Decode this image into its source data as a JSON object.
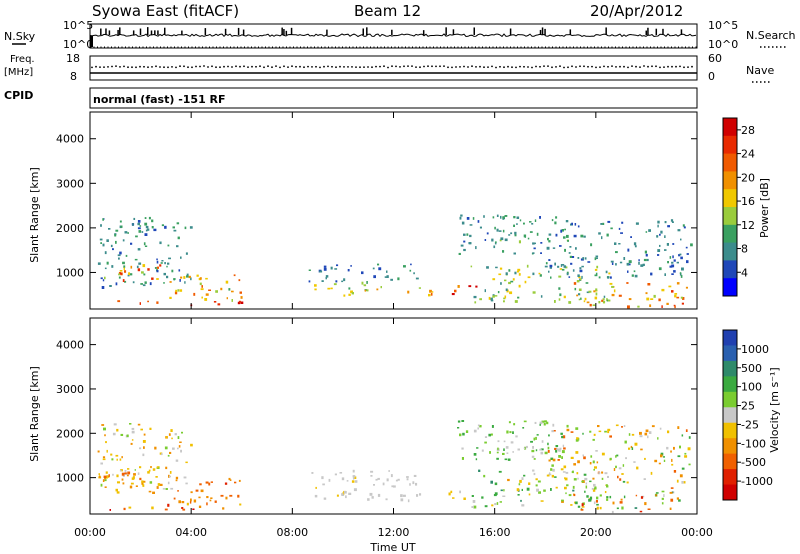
{
  "header": {
    "station": "Syowa East (fitACF)",
    "beam": "Beam 12",
    "date": "20/Apr/2012"
  },
  "top_panels": {
    "nsky_label": "N.Sky",
    "nsky_ticks": [
      "10^5",
      "10^0"
    ],
    "nsearch_label": "N.Search",
    "nsearch_ticks": [
      "10^5",
      "10^0"
    ],
    "freq_label": "Freq.",
    "freq_unit": "[MHz]",
    "freq_ticks": [
      "18",
      "8"
    ],
    "nave_label": "Nave",
    "nave_ticks": [
      "60",
      "0"
    ],
    "cpid_label": "CPID",
    "cpid_text": "normal (fast) -151 RF"
  },
  "colors": {
    "power_scale": [
      "#0000ff",
      "#1f47b8",
      "#3c8c8c",
      "#3aa060",
      "#9acc3c",
      "#f0c800",
      "#f09000",
      "#f05a00",
      "#e82a00",
      "#d00000"
    ],
    "velocity_scale": [
      "#2040b0",
      "#2a60b0",
      "#2e8a6a",
      "#3aaa40",
      "#7acc30",
      "#c8c8c8",
      "#f0c000",
      "#f09000",
      "#f06000",
      "#e02000",
      "#d00000"
    ]
  },
  "icons": [
    "nsearch-dotted-legend-icon",
    "nave-dotted-legend-icon"
  ],
  "chart_data": [
    {
      "type": "heatmap",
      "panel": "power",
      "ylabel": "Slant Range [km]",
      "y_ticks": [
        "1000",
        "2000",
        "3000",
        "4000"
      ],
      "ylim": [
        180,
        4600
      ],
      "colorbar_label": "Power [dB]",
      "colorbar_ticks": [
        "4",
        "8",
        "12",
        "16",
        "20",
        "24",
        "28"
      ],
      "colorbar_range": [
        0,
        30
      ],
      "x_range_hours": [
        0,
        24
      ],
      "scatter_regions": [
        {
          "t": [
            0.3,
            4.0
          ],
          "r": [
            650,
            2250
          ],
          "v": [
            4,
            12
          ]
        },
        {
          "t": [
            0.2,
            2.8
          ],
          "r": [
            800,
            1200
          ],
          "v": [
            12,
            26
          ]
        },
        {
          "t": [
            3.0,
            6.0
          ],
          "r": [
            400,
            1000
          ],
          "v": [
            10,
            24
          ]
        },
        {
          "t": [
            0.4,
            6.0
          ],
          "r": [
            280,
            380
          ],
          "v": [
            22,
            30
          ]
        },
        {
          "t": [
            8.5,
            13.0
          ],
          "r": [
            800,
            1200
          ],
          "v": [
            4,
            10
          ]
        },
        {
          "t": [
            8.8,
            11.0
          ],
          "r": [
            550,
            800
          ],
          "v": [
            8,
            16
          ]
        },
        {
          "t": [
            10.0,
            11.7
          ],
          "r": [
            500,
            720
          ],
          "v": [
            12,
            24
          ]
        },
        {
          "t": [
            12.0,
            13.6
          ],
          "r": [
            500,
            720
          ],
          "v": [
            14,
            28
          ]
        },
        {
          "t": [
            14.0,
            15.3
          ],
          "r": [
            500,
            720
          ],
          "v": [
            18,
            30
          ]
        },
        {
          "t": [
            14.5,
            18.5
          ],
          "r": [
            1400,
            2300
          ],
          "v": [
            4,
            12
          ]
        },
        {
          "t": [
            15.0,
            20.5
          ],
          "r": [
            350,
            1200
          ],
          "v": [
            6,
            18
          ]
        },
        {
          "t": [
            16.0,
            19.0
          ],
          "r": [
            1650,
            1850
          ],
          "v": [
            8,
            14
          ]
        },
        {
          "t": [
            18.0,
            23.8
          ],
          "r": [
            900,
            2200
          ],
          "v": [
            4,
            10
          ]
        },
        {
          "t": [
            19.0,
            23.6
          ],
          "r": [
            250,
            800
          ],
          "v": [
            12,
            26
          ]
        }
      ]
    },
    {
      "type": "heatmap",
      "panel": "velocity",
      "xlabel": "Time UT",
      "x_ticks": [
        "00:00",
        "04:00",
        "08:00",
        "12:00",
        "16:00",
        "20:00",
        "00:00"
      ],
      "ylabel": "Slant Range [km]",
      "y_ticks": [
        "1000",
        "2000",
        "3000",
        "4000"
      ],
      "ylim": [
        180,
        4600
      ],
      "colorbar_label": "Velocity [m s⁻¹]",
      "colorbar_ticks": [
        "1000",
        "500",
        "100",
        "25",
        "-25",
        "-100",
        "-500",
        "-1000"
      ],
      "colorbar_range": [
        -1000,
        1000
      ],
      "x_range_hours": [
        0,
        24
      ],
      "scatter_regions": [
        {
          "t": [
            0.3,
            4.0
          ],
          "r": [
            650,
            2250
          ],
          "v": [
            -400,
            200
          ]
        },
        {
          "t": [
            0.2,
            2.8
          ],
          "r": [
            800,
            1200
          ],
          "v": [
            -600,
            -100
          ]
        },
        {
          "t": [
            3.0,
            6.0
          ],
          "r": [
            400,
            1000
          ],
          "v": [
            -700,
            -200
          ]
        },
        {
          "t": [
            0.4,
            6.0
          ],
          "r": [
            280,
            380
          ],
          "v": [
            -900,
            -200
          ]
        },
        {
          "t": [
            8.5,
            13.0
          ],
          "r": [
            800,
            1200
          ],
          "v": [
            -100,
            100
          ]
        },
        {
          "t": [
            8.8,
            11.0
          ],
          "r": [
            550,
            800
          ],
          "v": [
            -200,
            -50
          ]
        },
        {
          "t": [
            10.0,
            11.7
          ],
          "r": [
            500,
            720
          ],
          "v": [
            -20,
            20
          ]
        },
        {
          "t": [
            12.0,
            13.6
          ],
          "r": [
            500,
            720
          ],
          "v": [
            -30,
            20
          ]
        },
        {
          "t": [
            14.0,
            15.3
          ],
          "r": [
            500,
            720
          ],
          "v": [
            -150,
            -30
          ]
        },
        {
          "t": [
            14.5,
            18.5
          ],
          "r": [
            1400,
            2300
          ],
          "v": [
            -20,
            400
          ]
        },
        {
          "t": [
            15.0,
            20.5
          ],
          "r": [
            350,
            1200
          ],
          "v": [
            -300,
            500
          ]
        },
        {
          "t": [
            16.0,
            19.0
          ],
          "r": [
            1650,
            1850
          ],
          "v": [
            -15,
            15
          ]
        },
        {
          "t": [
            18.0,
            23.8
          ],
          "r": [
            900,
            2200
          ],
          "v": [
            -500,
            400
          ]
        },
        {
          "t": [
            19.0,
            23.6
          ],
          "r": [
            250,
            800
          ],
          "v": [
            -800,
            600
          ]
        }
      ]
    }
  ]
}
